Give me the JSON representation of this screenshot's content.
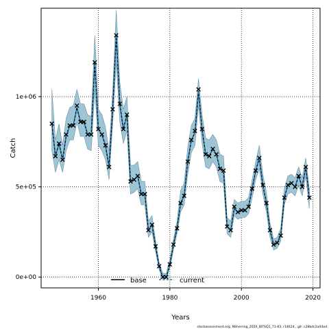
{
  "chart_data": {
    "type": "line",
    "xlabel": "Years",
    "ylabel": "Catch",
    "xlim": [
      1944,
      2022
    ],
    "ylim": [
      -60000,
      1490000
    ],
    "x_ticks": [
      1960,
      1980,
      2000,
      2020
    ],
    "y_ticks": [
      0,
      500000,
      1000000
    ],
    "y_tick_labels": [
      "0e+00",
      "5e+05",
      "1e+06"
    ],
    "grid": true,
    "legend_position": "bottom-center",
    "legend": [
      "base",
      "current"
    ],
    "footnote": "stockassessment.org, NSherring_2020_IBTSQ1_71-83, r14624 , git: c28bdc2a44ad",
    "colors": {
      "base": "#000000",
      "current": "#1a7fbf",
      "band": "#9ec5d6",
      "band_stroke": "#6a8fa0"
    },
    "series": [
      {
        "name": "base",
        "x": [
          1947,
          1948,
          1949,
          1950,
          1951,
          1952,
          1953,
          1954,
          1955,
          1956,
          1957,
          1958,
          1959,
          1960,
          1961,
          1962,
          1963,
          1964,
          1965,
          1966,
          1967,
          1968,
          1969,
          1970,
          1971,
          1972,
          1973,
          1974,
          1975,
          1976,
          1977,
          1978,
          1979,
          1980,
          1981,
          1982,
          1983,
          1984,
          1985,
          1986,
          1987,
          1988,
          1989,
          1990,
          1991,
          1992,
          1993,
          1994,
          1995,
          1996,
          1997,
          1998,
          1999,
          2000,
          2001,
          2002,
          2003,
          2004,
          2005,
          2006,
          2007,
          2008,
          2009,
          2010,
          2011,
          2012,
          2013,
          2014,
          2015,
          2016,
          2017,
          2018,
          2019
        ],
        "y": [
          850000,
          670000,
          740000,
          650000,
          780000,
          840000,
          840000,
          940000,
          860000,
          860000,
          790000,
          790000,
          1190000,
          820000,
          790000,
          730000,
          610000,
          930000,
          1340000,
          960000,
          820000,
          900000,
          530000,
          540000,
          560000,
          460000,
          460000,
          260000,
          290000,
          170000,
          60000,
          0,
          0,
          70000,
          180000,
          270000,
          410000,
          450000,
          640000,
          760000,
          800000,
          1030000,
          820000,
          680000,
          670000,
          710000,
          680000,
          600000,
          590000,
          280000,
          260000,
          380000,
          360000,
          370000,
          370000,
          390000,
          490000,
          590000,
          660000,
          510000,
          410000,
          260000,
          180000,
          190000,
          230000,
          440000,
          510000,
          520000,
          500000,
          560000,
          500000,
          610000,
          440000
        ]
      },
      {
        "name": "current",
        "x": [
          1947,
          1948,
          1949,
          1950,
          1951,
          1952,
          1953,
          1954,
          1955,
          1956,
          1957,
          1958,
          1959,
          1960,
          1961,
          1962,
          1963,
          1964,
          1965,
          1966,
          1967,
          1968,
          1969,
          1970,
          1971,
          1972,
          1973,
          1974,
          1975,
          1976,
          1977,
          1978,
          1979,
          1980,
          1981,
          1982,
          1983,
          1984,
          1985,
          1986,
          1987,
          1988,
          1989,
          1990,
          1991,
          1992,
          1993,
          1994,
          1995,
          1996,
          1997,
          1998,
          1999,
          2000,
          2001,
          2002,
          2003,
          2004,
          2005,
          2006,
          2007,
          2008,
          2009,
          2010,
          2011,
          2012,
          2013,
          2014,
          2015,
          2016,
          2017,
          2018,
          2019
        ],
        "y": [
          850000,
          670000,
          740000,
          650000,
          780000,
          840000,
          840000,
          940000,
          860000,
          860000,
          790000,
          790000,
          1190000,
          820000,
          790000,
          730000,
          610000,
          930000,
          1340000,
          960000,
          820000,
          900000,
          530000,
          540000,
          560000,
          460000,
          460000,
          260000,
          290000,
          170000,
          60000,
          0,
          0,
          70000,
          180000,
          270000,
          410000,
          450000,
          640000,
          760000,
          800000,
          1030000,
          820000,
          680000,
          670000,
          710000,
          680000,
          600000,
          590000,
          280000,
          260000,
          380000,
          360000,
          370000,
          370000,
          390000,
          490000,
          590000,
          660000,
          510000,
          410000,
          260000,
          180000,
          190000,
          230000,
          440000,
          510000,
          520000,
          500000,
          560000,
          500000,
          610000,
          440000
        ]
      }
    ],
    "observations": {
      "x": [
        1947,
        1948,
        1949,
        1950,
        1951,
        1952,
        1953,
        1954,
        1955,
        1956,
        1957,
        1958,
        1959,
        1960,
        1961,
        1962,
        1963,
        1964,
        1965,
        1966,
        1967,
        1968,
        1969,
        1970,
        1971,
        1972,
        1973,
        1974,
        1975,
        1976,
        1977,
        1978,
        1979,
        1980,
        1981,
        1982,
        1983,
        1984,
        1985,
        1986,
        1987,
        1988,
        1989,
        1990,
        1991,
        1992,
        1993,
        1994,
        1995,
        1996,
        1997,
        1998,
        1999,
        2000,
        2001,
        2002,
        2003,
        2004,
        2005,
        2006,
        2007,
        2008,
        2009,
        2010,
        2011,
        2012,
        2013,
        2014,
        2015,
        2016,
        2017,
        2018,
        2019
      ],
      "y": [
        850000,
        670000,
        740000,
        650000,
        790000,
        840000,
        840000,
        950000,
        860000,
        860000,
        790000,
        790000,
        1190000,
        820000,
        790000,
        730000,
        610000,
        930000,
        1340000,
        960000,
        820000,
        900000,
        530000,
        540000,
        560000,
        460000,
        460000,
        260000,
        290000,
        170000,
        60000,
        0,
        0,
        70000,
        180000,
        270000,
        410000,
        450000,
        640000,
        760000,
        810000,
        1040000,
        820000,
        680000,
        670000,
        710000,
        680000,
        600000,
        590000,
        280000,
        260000,
        390000,
        360000,
        370000,
        370000,
        390000,
        490000,
        590000,
        660000,
        510000,
        410000,
        260000,
        180000,
        190000,
        230000,
        440000,
        510000,
        520000,
        500000,
        560000,
        500000,
        610000,
        440000
      ]
    },
    "band": {
      "x": [
        1947,
        1948,
        1949,
        1950,
        1951,
        1952,
        1953,
        1954,
        1955,
        1956,
        1957,
        1958,
        1959,
        1960,
        1961,
        1962,
        1963,
        1964,
        1965,
        1966,
        1967,
        1968,
        1969,
        1970,
        1971,
        1972,
        1973,
        1974,
        1975,
        1976,
        1977,
        1978,
        1979,
        1980,
        1981,
        1982,
        1983,
        1984,
        1985,
        1986,
        1987,
        1988,
        1989,
        1990,
        1991,
        1992,
        1993,
        1994,
        1995,
        1996,
        1997,
        1998,
        1999,
        2000,
        2001,
        2002,
        2003,
        2004,
        2005,
        2006,
        2007,
        2008,
        2009,
        2010,
        2011,
        2012,
        2013,
        2014,
        2015,
        2016,
        2017,
        2018,
        2019
      ],
      "upper": [
        1040000,
        760000,
        850000,
        730000,
        880000,
        940000,
        950000,
        1040000,
        960000,
        960000,
        900000,
        890000,
        1340000,
        930000,
        900000,
        830000,
        700000,
        1030000,
        1480000,
        1080000,
        930000,
        1000000,
        620000,
        620000,
        640000,
        530000,
        530000,
        310000,
        340000,
        200000,
        80000,
        20000,
        20000,
        100000,
        210000,
        310000,
        480000,
        520000,
        720000,
        840000,
        880000,
        1100000,
        900000,
        770000,
        760000,
        790000,
        760000,
        680000,
        670000,
        330000,
        310000,
        430000,
        410000,
        420000,
        420000,
        440000,
        540000,
        640000,
        730000,
        570000,
        470000,
        300000,
        210000,
        220000,
        270000,
        490000,
        560000,
        570000,
        550000,
        610000,
        550000,
        660000,
        490000
      ],
      "lower": [
        700000,
        580000,
        650000,
        580000,
        700000,
        760000,
        760000,
        860000,
        780000,
        780000,
        710000,
        700000,
        1040000,
        730000,
        700000,
        650000,
        540000,
        850000,
        1190000,
        860000,
        740000,
        810000,
        460000,
        470000,
        490000,
        400000,
        400000,
        220000,
        250000,
        140000,
        40000,
        -10000,
        -10000,
        50000,
        150000,
        240000,
        360000,
        400000,
        570000,
        690000,
        730000,
        950000,
        740000,
        610000,
        600000,
        640000,
        610000,
        530000,
        520000,
        240000,
        220000,
        340000,
        320000,
        330000,
        330000,
        350000,
        440000,
        540000,
        600000,
        460000,
        360000,
        220000,
        150000,
        160000,
        200000,
        400000,
        460000,
        470000,
        450000,
        510000,
        450000,
        560000,
        380000
      ]
    }
  }
}
